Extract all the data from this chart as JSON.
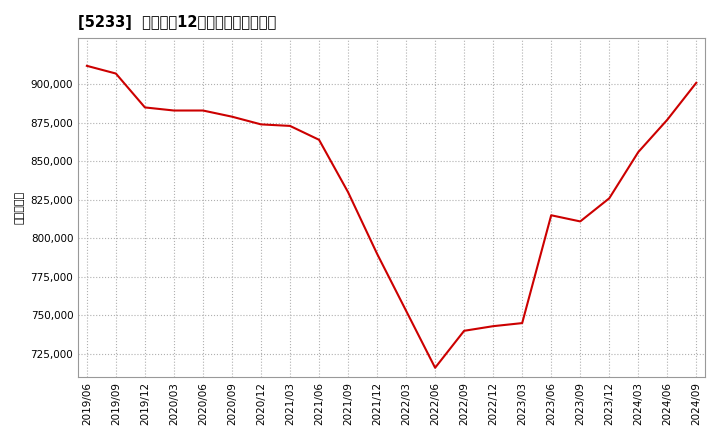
{
  "title": "[5233]  売上高の12か月移動合計の推移",
  "ylabel": "（百万円）",
  "line_color": "#cc0000",
  "bg_color": "#ffffff",
  "plot_bg_color": "#ffffff",
  "grid_color": "#b0b0b0",
  "ylim": [
    710000,
    930000
  ],
  "yticks": [
    725000,
    750000,
    775000,
    800000,
    825000,
    850000,
    875000,
    900000
  ],
  "dates": [
    "2019/06",
    "2019/09",
    "2019/12",
    "2020/03",
    "2020/06",
    "2020/09",
    "2020/12",
    "2021/03",
    "2021/06",
    "2021/09",
    "2021/12",
    "2022/03",
    "2022/06",
    "2022/09",
    "2022/12",
    "2023/03",
    "2023/06",
    "2023/09",
    "2023/12",
    "2024/03",
    "2024/06",
    "2024/09"
  ],
  "values": [
    912000,
    907000,
    885000,
    883000,
    883000,
    879000,
    874000,
    873000,
    864000,
    830000,
    790000,
    753000,
    716000,
    740000,
    743000,
    745000,
    815000,
    811000,
    826000,
    856000,
    877000,
    901000
  ],
  "xtick_labels": [
    "2019/06",
    "2019/09",
    "2019/12",
    "2020/03",
    "2020/06",
    "2020/09",
    "2020/12",
    "2021/03",
    "2021/06",
    "2021/09",
    "2021/12",
    "2022/03",
    "2022/06",
    "2022/09",
    "2022/12",
    "2023/03",
    "2023/06",
    "2023/09",
    "2023/12",
    "2024/03",
    "2024/06",
    "2024/09"
  ]
}
